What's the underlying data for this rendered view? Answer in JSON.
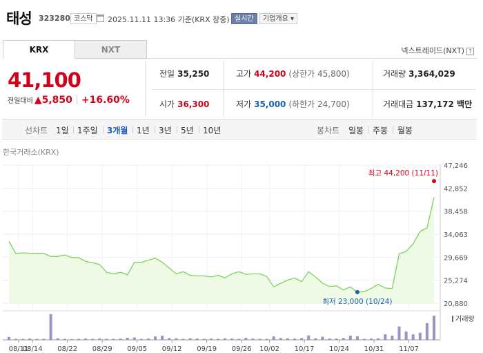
{
  "header": {
    "name": "태성",
    "code": "323280",
    "market": "코스닥",
    "datetime": "2025.11.11 13:36 기준(KRX 장중)",
    "realtime_label": "실시간",
    "company_label": "기업개요 ▾"
  },
  "tabs": [
    {
      "label": "KRX",
      "active": true
    },
    {
      "label": "NXT",
      "active": false
    }
  ],
  "nxt_link": "넥스트레이드(NXT)",
  "price": {
    "current": "41,100",
    "change_label": "전일대비",
    "change": "▲5,850",
    "change_pct": "+16.60%"
  },
  "stats": {
    "prev_close": {
      "label": "전일",
      "value": "35,250"
    },
    "high": {
      "label": "고가",
      "value": "44,200",
      "sub": "(상한가 45,800)"
    },
    "volume": {
      "label": "거래량",
      "value": "3,364,029"
    },
    "open": {
      "label": "시가",
      "value": "36,300"
    },
    "low": {
      "label": "저가",
      "value": "35,000",
      "sub": "(하한가 24,700)"
    },
    "amount": {
      "label": "거래대금",
      "value": "137,172 백만"
    }
  },
  "periods": {
    "line_label": "선차트",
    "line": [
      {
        "label": "1일",
        "active": false
      },
      {
        "label": "1주일",
        "active": false
      },
      {
        "label": "3개월",
        "active": true
      },
      {
        "label": "1년",
        "active": false
      },
      {
        "label": "3년",
        "active": false
      },
      {
        "label": "5년",
        "active": false
      },
      {
        "label": "10년",
        "active": false
      }
    ],
    "candle_label": "봉차트",
    "candle": [
      {
        "label": "일봉"
      },
      {
        "label": "주봉"
      },
      {
        "label": "월봉"
      }
    ]
  },
  "chart_source": "한국거래소(KRX)",
  "colors": {
    "up": "#d0021b",
    "down": "#1a5fb4",
    "line": "#7dd35b",
    "area": "#eef9e6",
    "volume": "#9d91c8"
  },
  "chart_data": {
    "type": "area",
    "y_ticks": [
      "47,246",
      "42,852",
      "38,458",
      "34,063",
      "29,669",
      "25,274",
      "20,880"
    ],
    "ylim": [
      20880,
      47246
    ],
    "x_tick_labels": [
      "08/11",
      "08/14",
      "08/22",
      "08/29",
      "09/05",
      "09/12",
      "09/19",
      "09/26",
      "10/02",
      "10/17",
      "10/24",
      "10/31",
      "11/07"
    ],
    "high_annotation": "최고 44,200 (11/11)",
    "low_annotation": "최저 23,000 (10/24)",
    "high_value": 44200,
    "low_value": 23000,
    "volume_label": "거래량",
    "prices": [
      32700,
      30300,
      30500,
      30400,
      30400,
      30400,
      29800,
      29800,
      30100,
      29600,
      29600,
      28900,
      28600,
      28300,
      26800,
      26500,
      26800,
      26300,
      28700,
      28700,
      29100,
      29500,
      28700,
      27600,
      26500,
      26900,
      26200,
      26100,
      26100,
      25900,
      26200,
      25700,
      26500,
      26900,
      26400,
      26500,
      26500,
      26000,
      24000,
      24700,
      25300,
      25700,
      25000,
      26900,
      25900,
      24700,
      24100,
      24200,
      23400,
      24000,
      23000,
      23100,
      23700,
      24500,
      23800,
      23700,
      30300,
      30800,
      32200,
      34600,
      35250,
      41100
    ],
    "volumes": [
      0.11,
      0.04,
      0.04,
      0.05,
      0.04,
      0.04,
      0.98,
      0.06,
      0.04,
      0.03,
      0.04,
      0.05,
      0.04,
      0.05,
      0.04,
      0.04,
      0.05,
      0.08,
      0.09,
      0.04,
      0.05,
      0.13,
      0.16,
      0.07,
      0.06,
      0.04,
      0.06,
      0.05,
      0.04,
      0.05,
      0.04,
      0.06,
      0.05,
      0.04,
      0.08,
      0.05,
      0.04,
      0.04,
      0.13,
      0.07,
      0.06,
      0.05,
      0.07,
      0.17,
      0.06,
      0.12,
      0.05,
      0.05,
      0.07,
      0.16,
      0.14,
      0.04,
      0.05,
      0.06,
      0.21,
      0.16,
      0.51,
      0.32,
      0.21,
      0.27,
      0.64,
      0.92
    ]
  }
}
